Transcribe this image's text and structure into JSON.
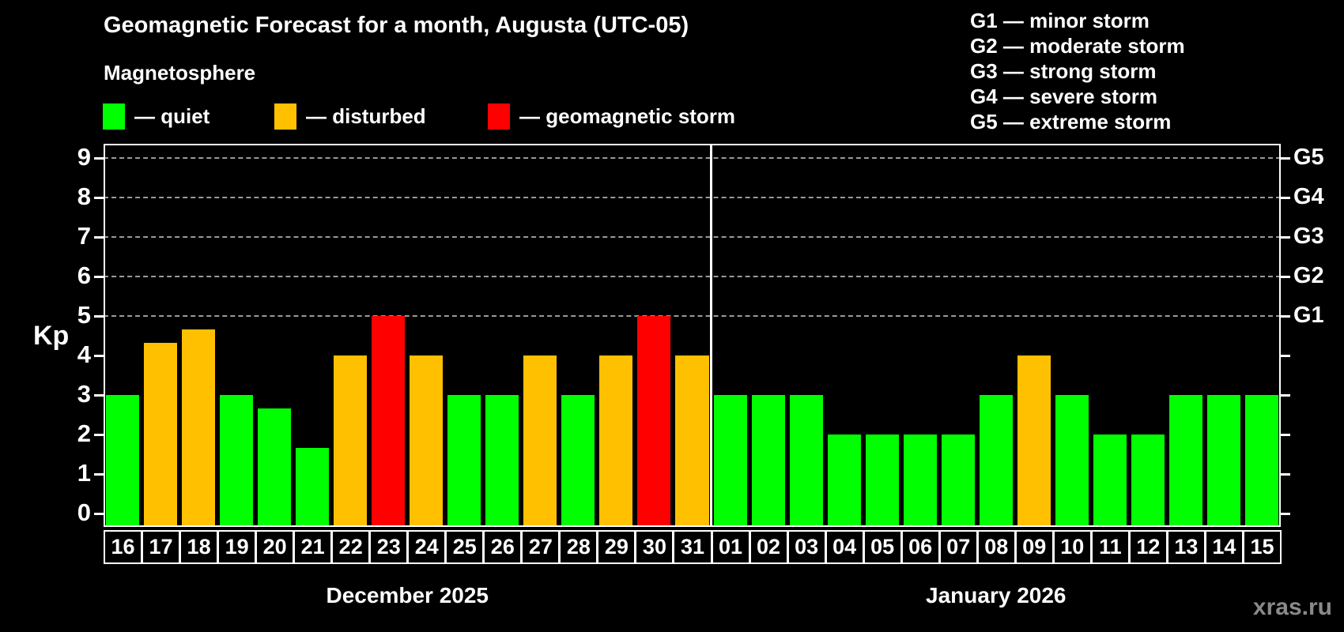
{
  "page": {
    "background": "#000000",
    "watermark": "xras.ru"
  },
  "legend": {
    "heading": "Magnetosphere",
    "items": [
      {
        "name": "quiet",
        "label": "— quiet",
        "color": "#00ff00"
      },
      {
        "name": "disturbed",
        "label": "— disturbed",
        "color": "#ffc000"
      },
      {
        "name": "storm",
        "label": "— geomagnetic storm",
        "color": "#ff0000"
      }
    ]
  },
  "storm_legend": {
    "items": [
      "G1 — minor storm",
      "G2 — moderate storm",
      "G3 — strong storm",
      "G4 — severe storm",
      "G5 — extreme storm"
    ]
  },
  "chart_data": {
    "type": "bar",
    "title": "Geomagnetic Forecast for a month, Augusta (UTC-05)",
    "subtitle": "Magnetosphere",
    "ylabel": "Kp",
    "ylim": [
      -0.35,
      9.35
    ],
    "y_ticks": [
      0,
      1,
      2,
      3,
      4,
      5,
      6,
      7,
      8,
      9
    ],
    "gridlines_at": [
      5,
      6,
      7,
      8,
      9
    ],
    "grid_style": "dashed gray, only at storm levels",
    "right_axis_labels": [
      {
        "kp": 5,
        "label": "G1"
      },
      {
        "kp": 6,
        "label": "G2"
      },
      {
        "kp": 7,
        "label": "G3"
      },
      {
        "kp": 8,
        "label": "G4"
      },
      {
        "kp": 9,
        "label": "G5"
      }
    ],
    "status_colors": {
      "quiet": "#00ff00",
      "disturbed": "#ffc000",
      "storm": "#ff0000"
    },
    "months": [
      {
        "label": "December 2025",
        "days": [
          {
            "day": "16",
            "kp": 3,
            "status": "quiet"
          },
          {
            "day": "17",
            "kp": 4.33,
            "status": "disturbed"
          },
          {
            "day": "18",
            "kp": 4.67,
            "status": "disturbed"
          },
          {
            "day": "19",
            "kp": 3,
            "status": "quiet"
          },
          {
            "day": "20",
            "kp": 2.67,
            "status": "quiet"
          },
          {
            "day": "21",
            "kp": 1.67,
            "status": "quiet"
          },
          {
            "day": "22",
            "kp": 4,
            "status": "disturbed"
          },
          {
            "day": "23",
            "kp": 5,
            "status": "storm"
          },
          {
            "day": "24",
            "kp": 4,
            "status": "disturbed"
          },
          {
            "day": "25",
            "kp": 3,
            "status": "quiet"
          },
          {
            "day": "26",
            "kp": 3,
            "status": "quiet"
          },
          {
            "day": "27",
            "kp": 4,
            "status": "disturbed"
          },
          {
            "day": "28",
            "kp": 3,
            "status": "quiet"
          },
          {
            "day": "29",
            "kp": 4,
            "status": "disturbed"
          },
          {
            "day": "30",
            "kp": 5,
            "status": "storm"
          },
          {
            "day": "31",
            "kp": 4,
            "status": "disturbed"
          }
        ]
      },
      {
        "label": "January 2026",
        "days": [
          {
            "day": "01",
            "kp": 3,
            "status": "quiet"
          },
          {
            "day": "02",
            "kp": 3,
            "status": "quiet"
          },
          {
            "day": "03",
            "kp": 3,
            "status": "quiet"
          },
          {
            "day": "04",
            "kp": 2,
            "status": "quiet"
          },
          {
            "day": "05",
            "kp": 2,
            "status": "quiet"
          },
          {
            "day": "06",
            "kp": 2,
            "status": "quiet"
          },
          {
            "day": "07",
            "kp": 2,
            "status": "quiet"
          },
          {
            "day": "08",
            "kp": 3,
            "status": "quiet"
          },
          {
            "day": "09",
            "kp": 4,
            "status": "disturbed"
          },
          {
            "day": "10",
            "kp": 3,
            "status": "quiet"
          },
          {
            "day": "11",
            "kp": 2,
            "status": "quiet"
          },
          {
            "day": "12",
            "kp": 2,
            "status": "quiet"
          },
          {
            "day": "13",
            "kp": 3,
            "status": "quiet"
          },
          {
            "day": "14",
            "kp": 3,
            "status": "quiet"
          },
          {
            "day": "15",
            "kp": 3,
            "status": "quiet"
          }
        ]
      }
    ]
  }
}
